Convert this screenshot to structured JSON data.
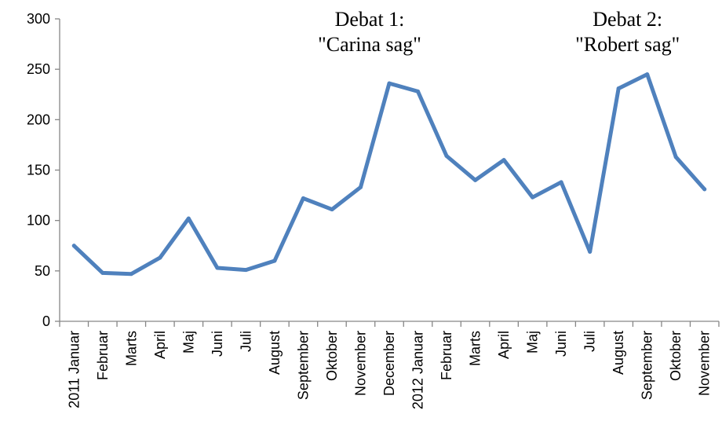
{
  "chart_data": {
    "type": "line",
    "title": "",
    "xlabel": "",
    "ylabel": "",
    "ylim": [
      0,
      300
    ],
    "yticks": [
      "0",
      "50",
      "100",
      "150",
      "200",
      "250",
      "300"
    ],
    "grid": false,
    "legend": "none",
    "categories": [
      "2011 Januar",
      "Februar",
      "Marts",
      "April",
      "Maj",
      "Juni",
      "Juli",
      "August",
      "September",
      "Oktober",
      "November",
      "December",
      "2012 Januar",
      "Februar",
      "Marts",
      "April",
      "Maj",
      "Juni",
      "Juli",
      "August",
      "September",
      "Oktober",
      "November"
    ],
    "series": [
      {
        "color": "#4f81bd",
        "values": [
          75,
          48,
          47,
          63,
          102,
          53,
          51,
          60,
          122,
          111,
          133,
          236,
          228,
          164,
          140,
          160,
          123,
          138,
          69,
          231,
          245,
          163,
          131
        ]
      }
    ],
    "annotations": [
      {
        "lines": [
          "Debat 1:",
          "\"Carina sag\""
        ],
        "category_index": 11
      },
      {
        "lines": [
          "Debat 2:",
          "\"Robert sag\""
        ],
        "category_index": 20
      }
    ]
  }
}
